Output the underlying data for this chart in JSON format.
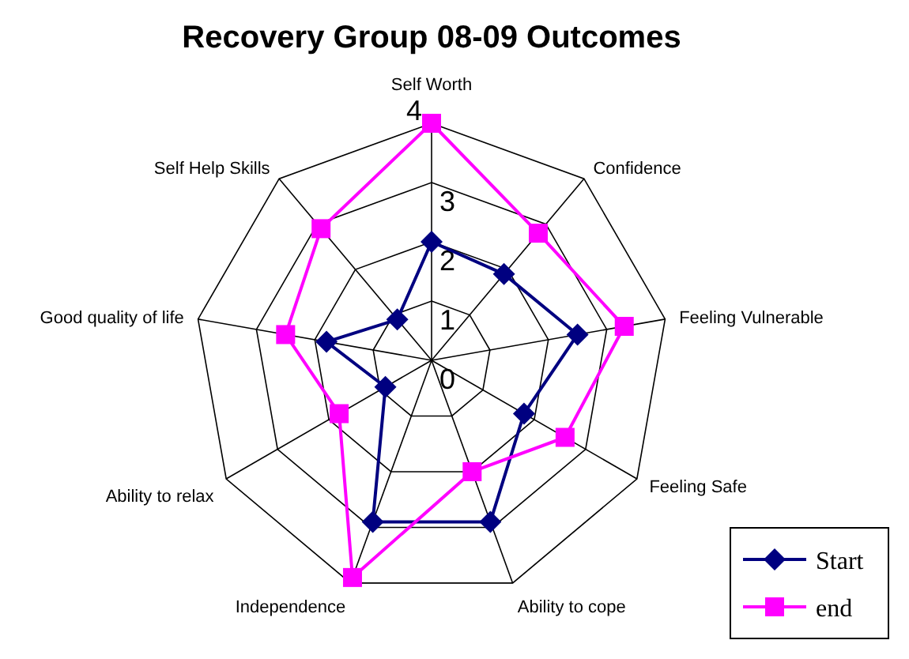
{
  "chart_data": {
    "type": "radar",
    "title": "Recovery Group 08-09 Outcomes",
    "categories": [
      "Self Worth",
      "Confidence",
      "Feeling Vulnerable",
      "Feeling Safe",
      "Ability to cope",
      "Independence",
      "Ability to relax",
      "Good quality of life",
      "Self Help Skills"
    ],
    "series": [
      {
        "name": "Start",
        "color": "#000080",
        "marker": "diamond",
        "values": [
          2.0,
          1.9,
          2.5,
          1.8,
          2.9,
          2.9,
          0.9,
          1.8,
          0.9
        ]
      },
      {
        "name": "end",
        "color": "#ff00ff",
        "marker": "square",
        "values": [
          4.0,
          2.8,
          3.3,
          2.6,
          2.0,
          3.9,
          1.8,
          2.5,
          2.9
        ]
      }
    ],
    "ylim": [
      0,
      4
    ],
    "yticks": [
      0,
      1,
      2,
      3,
      4
    ],
    "grid": true,
    "legend": "bottom right"
  }
}
